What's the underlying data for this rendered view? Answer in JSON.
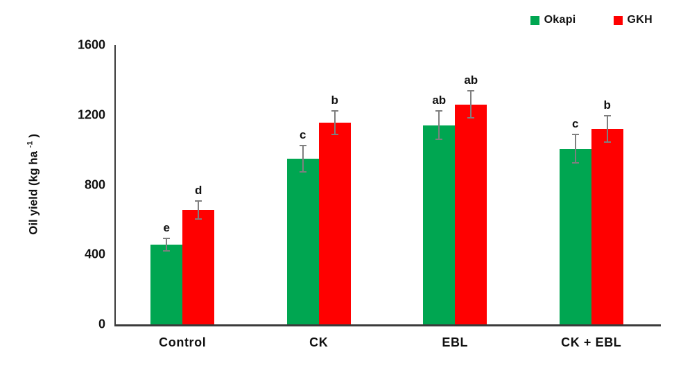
{
  "figure": {
    "background": "#ffffff"
  },
  "y_axis": {
    "title_main": "Oil yield (kg ha ",
    "title_sup": "-1",
    "title_close": " )"
  },
  "chart_data": {
    "type": "bar",
    "title": "",
    "xlabel": "",
    "ylabel": "Oil yield (kg ha -1)",
    "ylim": [
      0,
      1600
    ],
    "yticks": [
      0,
      400,
      800,
      1200,
      1600
    ],
    "grid": false,
    "legend_position": "top-right",
    "categories": [
      "Control",
      "CK",
      "EBL",
      "CK + EBL"
    ],
    "series": [
      {
        "name": "Okapi",
        "color": "#00A651",
        "values": [
          455,
          950,
          1140,
          1005
        ],
        "errors": [
          40,
          80,
          85,
          85
        ],
        "sig_letters": [
          "e",
          "c",
          "ab",
          "c"
        ]
      },
      {
        "name": "GKH",
        "color": "#FF0000",
        "values": [
          655,
          1155,
          1260,
          1120
        ],
        "errors": [
          55,
          70,
          80,
          80
        ],
        "sig_letters": [
          "d",
          "b",
          "ab",
          "b"
        ]
      }
    ],
    "error_bar_color": "#7f7f7f",
    "axis_color": "#3b3b3b",
    "text_color": "#111111"
  }
}
